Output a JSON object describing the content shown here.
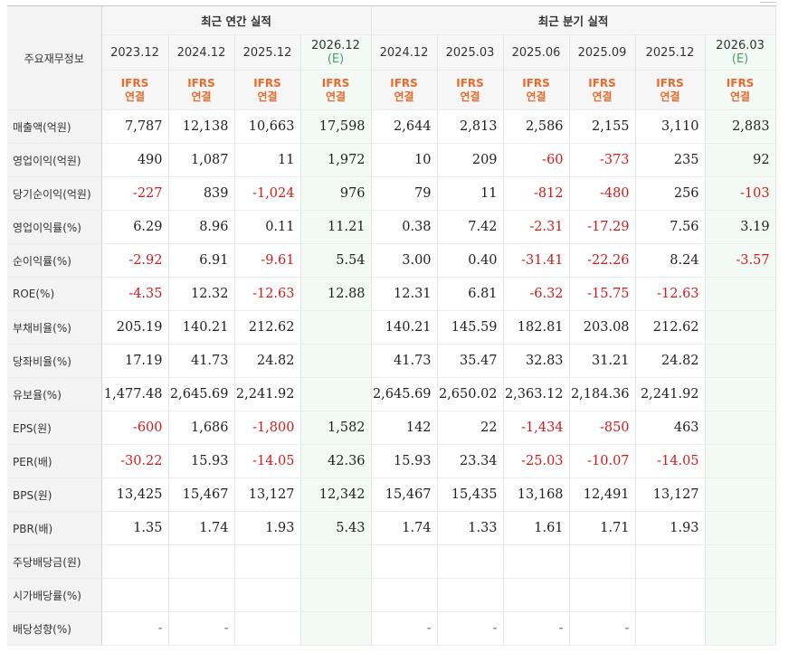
{
  "header": {
    "corner_label": "주요재무정보",
    "annual_group": "최근 연간 실적",
    "quarter_group": "최근 분기 실적",
    "periods": [
      {
        "label": "2023.12",
        "estimate": ""
      },
      {
        "label": "2024.12",
        "estimate": ""
      },
      {
        "label": "2025.12",
        "estimate": ""
      },
      {
        "label": "2026.12",
        "estimate": "(E)"
      },
      {
        "label": "2024.12",
        "estimate": ""
      },
      {
        "label": "2025.03",
        "estimate": ""
      },
      {
        "label": "2025.06",
        "estimate": ""
      },
      {
        "label": "2025.09",
        "estimate": ""
      },
      {
        "label": "2025.12",
        "estimate": ""
      },
      {
        "label": "2026.03",
        "estimate": "(E)"
      }
    ],
    "basis_line1": "IFRS",
    "basis_line2": "연결"
  },
  "rows": [
    {
      "label": "매출액(억원)",
      "values": [
        "7,787",
        "12,138",
        "10,663",
        "17,598",
        "2,644",
        "2,813",
        "2,586",
        "2,155",
        "3,110",
        "2,883"
      ]
    },
    {
      "label": "영업이익(억원)",
      "values": [
        "490",
        "1,087",
        "11",
        "1,972",
        "10",
        "209",
        "-60",
        "-373",
        "235",
        "92"
      ]
    },
    {
      "label": "당기순이익(억원)",
      "values": [
        "-227",
        "839",
        "-1,024",
        "976",
        "79",
        "11",
        "-812",
        "-480",
        "256",
        "-103"
      ]
    },
    {
      "label": "영업이익률(%)",
      "values": [
        "6.29",
        "8.96",
        "0.11",
        "11.21",
        "0.38",
        "7.42",
        "-2.31",
        "-17.29",
        "7.56",
        "3.19"
      ]
    },
    {
      "label": "순이익률(%)",
      "values": [
        "-2.92",
        "6.91",
        "-9.61",
        "5.54",
        "3.00",
        "0.40",
        "-31.41",
        "-22.26",
        "8.24",
        "-3.57"
      ]
    },
    {
      "label": "ROE(%)",
      "values": [
        "-4.35",
        "12.32",
        "-12.63",
        "12.88",
        "12.31",
        "6.81",
        "-6.32",
        "-15.75",
        "-12.63",
        ""
      ]
    },
    {
      "label": "부채비율(%)",
      "values": [
        "205.19",
        "140.21",
        "212.62",
        "",
        "140.21",
        "145.59",
        "182.81",
        "203.08",
        "212.62",
        ""
      ]
    },
    {
      "label": "당좌비율(%)",
      "values": [
        "17.19",
        "41.73",
        "24.82",
        "",
        "41.73",
        "35.47",
        "32.83",
        "31.21",
        "24.82",
        ""
      ]
    },
    {
      "label": "유보율(%)",
      "values": [
        "1,477.48",
        "2,645.69",
        "2,241.92",
        "",
        "2,645.69",
        "2,650.02",
        "2,363.12",
        "2,184.36",
        "2,241.92",
        ""
      ]
    },
    {
      "label": "EPS(원)",
      "values": [
        "-600",
        "1,686",
        "-1,800",
        "1,582",
        "142",
        "22",
        "-1,434",
        "-850",
        "463",
        ""
      ]
    },
    {
      "label": "PER(배)",
      "values": [
        "-30.22",
        "15.93",
        "-14.05",
        "42.36",
        "15.93",
        "23.34",
        "-25.03",
        "-10.07",
        "-14.05",
        ""
      ]
    },
    {
      "label": "BPS(원)",
      "values": [
        "13,425",
        "15,467",
        "13,127",
        "12,342",
        "15,467",
        "15,435",
        "13,168",
        "12,491",
        "13,127",
        ""
      ]
    },
    {
      "label": "PBR(배)",
      "values": [
        "1.35",
        "1.74",
        "1.93",
        "5.43",
        "1.74",
        "1.33",
        "1.61",
        "1.71",
        "1.93",
        ""
      ]
    },
    {
      "label": "주당배당금(원)",
      "values": [
        "",
        "",
        "",
        "",
        "",
        "",
        "",
        "",
        "",
        ""
      ]
    },
    {
      "label": "시가배당률(%)",
      "values": [
        "",
        "",
        "",
        "",
        "",
        "",
        "",
        "",
        "",
        ""
      ]
    },
    {
      "label": "배당성향(%)",
      "values": [
        "-",
        "-",
        "",
        "",
        "-",
        "-",
        "-",
        "-",
        "",
        ""
      ]
    }
  ],
  "group_starts": [
    3,
    6,
    9,
    13
  ],
  "colors": {
    "negative": "#d31a1a",
    "ifrs": "#e96a2c",
    "estimate": "#4aa05f",
    "estimate_bg": "#f3faf5"
  }
}
